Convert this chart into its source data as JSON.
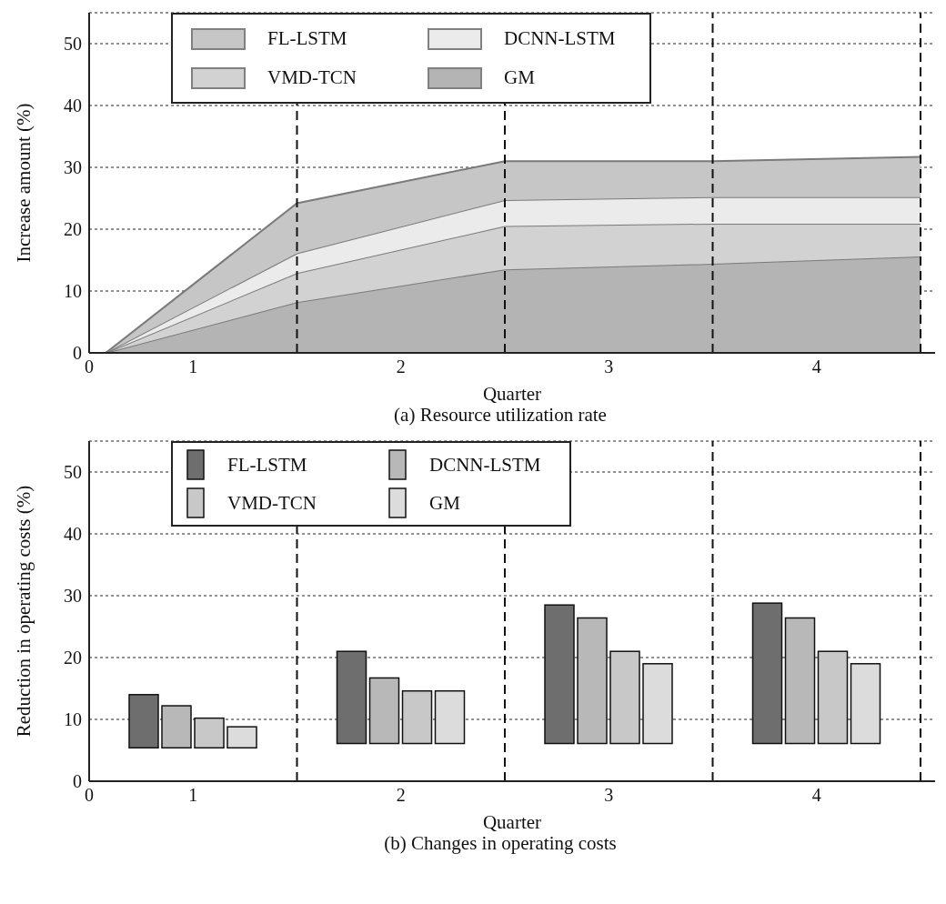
{
  "chart_data": [
    {
      "type": "area",
      "stacked": true,
      "title": "(a) Resource utilization rate",
      "xlabel": "Quarter",
      "ylabel": "Increase amount (%)",
      "x": [
        0.08,
        1,
        2,
        3,
        4
      ],
      "series": [
        {
          "name": "GM",
          "color": "#b4b4b4",
          "values": [
            0,
            8.2,
            13.5,
            14.4,
            15.6
          ]
        },
        {
          "name": "VMD-TCN",
          "color": "#d2d2d2",
          "values": [
            0,
            4.7,
            7,
            6.5,
            5.3
          ]
        },
        {
          "name": "DCNN-LSTM",
          "color": "#ebebeb",
          "values": [
            0,
            3.2,
            4.2,
            4.3,
            4.3
          ]
        },
        {
          "name": "FL-LSTM",
          "color": "#c6c6c6",
          "values": [
            0,
            8.1,
            6.3,
            5.8,
            6.5
          ]
        }
      ],
      "xlim": [
        0,
        4.07
      ],
      "xticks": [
        0,
        {
          "value": 0.5,
          "label": "1"
        },
        {
          "value": 1.5,
          "label": "2"
        },
        {
          "value": 2.5,
          "label": "3"
        },
        {
          "value": 3.5,
          "label": "4"
        }
      ],
      "ylim": [
        0,
        55
      ],
      "yticks": [
        0,
        10,
        20,
        30,
        40,
        50
      ],
      "grid": "y",
      "legend": "top",
      "ref_lines": [
        {
          "axis": "x",
          "value": 1,
          "line_style": "dashed"
        },
        {
          "axis": "x",
          "value": 2,
          "line_style": "dashed"
        },
        {
          "axis": "x",
          "value": 3,
          "line_style": "dashed"
        },
        {
          "axis": "x",
          "value": 4,
          "line_style": "dashed"
        }
      ]
    },
    {
      "type": "bar",
      "title": "(b) Changes in operating costs",
      "xlabel": "Quarter",
      "ylabel": "Reduction in operating costs (%)",
      "x": [
        0.5,
        1.5,
        2.5,
        3.5
      ],
      "series": [
        {
          "name": "FL-LSTM",
          "color": "#6e6e6e",
          "base": [
            5.4,
            6.1,
            6.1,
            6.1
          ],
          "values": [
            8.6,
            14.9,
            22.4,
            22.7
          ]
        },
        {
          "name": "DCNN-LSTM",
          "color": "#b8b8b8",
          "base": [
            5.4,
            6.1,
            6.1,
            6.1
          ],
          "values": [
            6.8,
            10.6,
            20.3,
            20.3
          ]
        },
        {
          "name": "VMD-TCN",
          "color": "#c8c8c8",
          "base": [
            5.4,
            6.1,
            6.1,
            6.1
          ],
          "values": [
            4.8,
            8.5,
            14.9,
            14.9
          ]
        },
        {
          "name": "GM",
          "color": "#dcdcdc",
          "base": [
            5.4,
            6.1,
            6.1,
            6.1
          ],
          "values": [
            3.4,
            8.5,
            12.9,
            12.9
          ]
        }
      ],
      "xlim": [
        0,
        4.07
      ],
      "xticks": [
        0,
        {
          "value": 0.5,
          "label": "1"
        },
        {
          "value": 1.5,
          "label": "2"
        },
        {
          "value": 2.5,
          "label": "3"
        },
        {
          "value": 3.5,
          "label": "4"
        }
      ],
      "ylim": [
        0,
        55
      ],
      "yticks": [
        0,
        10,
        20,
        30,
        40,
        50
      ],
      "grid": "y",
      "legend": "top",
      "ref_lines": [
        {
          "axis": "x",
          "value": 1,
          "line_style": "dashed"
        },
        {
          "axis": "x",
          "value": 2,
          "line_style": "dashed"
        },
        {
          "axis": "x",
          "value": 3,
          "line_style": "dashed"
        },
        {
          "axis": "x",
          "value": 4,
          "line_style": "dashed"
        }
      ]
    }
  ]
}
